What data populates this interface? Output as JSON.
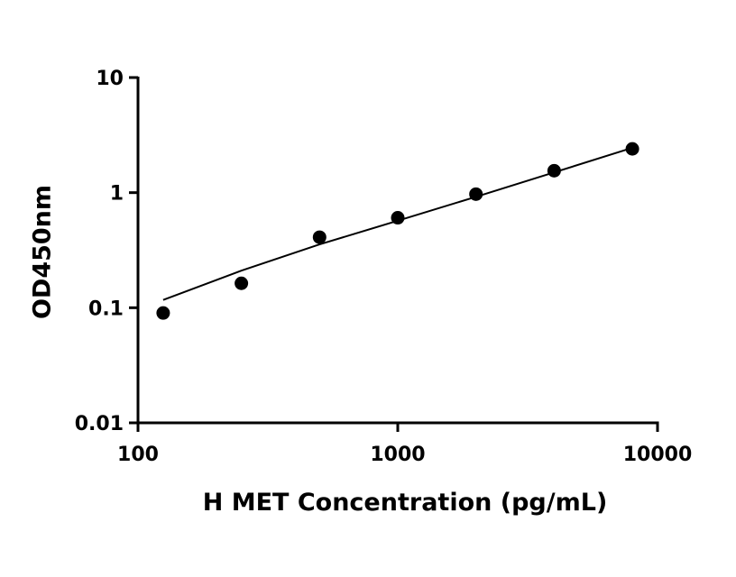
{
  "chart_data": {
    "type": "scatter",
    "xscale": "log",
    "yscale": "log",
    "xlabel": "H MET Concentration (pg/mL)",
    "ylabel": "OD450nm",
    "xlim": [
      100,
      10000
    ],
    "ylim": [
      0.01,
      10
    ],
    "x_ticks": [
      100,
      1000,
      10000
    ],
    "x_tick_labels": [
      "100",
      "1000",
      "10000"
    ],
    "y_ticks": [
      0.01,
      0.1,
      1,
      10
    ],
    "y_tick_labels": [
      "0.01",
      "0.1",
      "1",
      "10"
    ],
    "grid": false,
    "series": [
      {
        "x": [
          125,
          250,
          500,
          1000,
          2000,
          4000,
          8000
        ],
        "y": [
          0.09,
          0.163,
          0.41,
          0.605,
          0.97,
          1.55,
          2.4
        ]
      }
    ],
    "fit_curve": {
      "x": [
        125,
        250,
        500,
        1000,
        2000,
        4000,
        8000
      ],
      "y": [
        0.117,
        0.21,
        0.355,
        0.57,
        0.92,
        1.5,
        2.45
      ]
    }
  }
}
